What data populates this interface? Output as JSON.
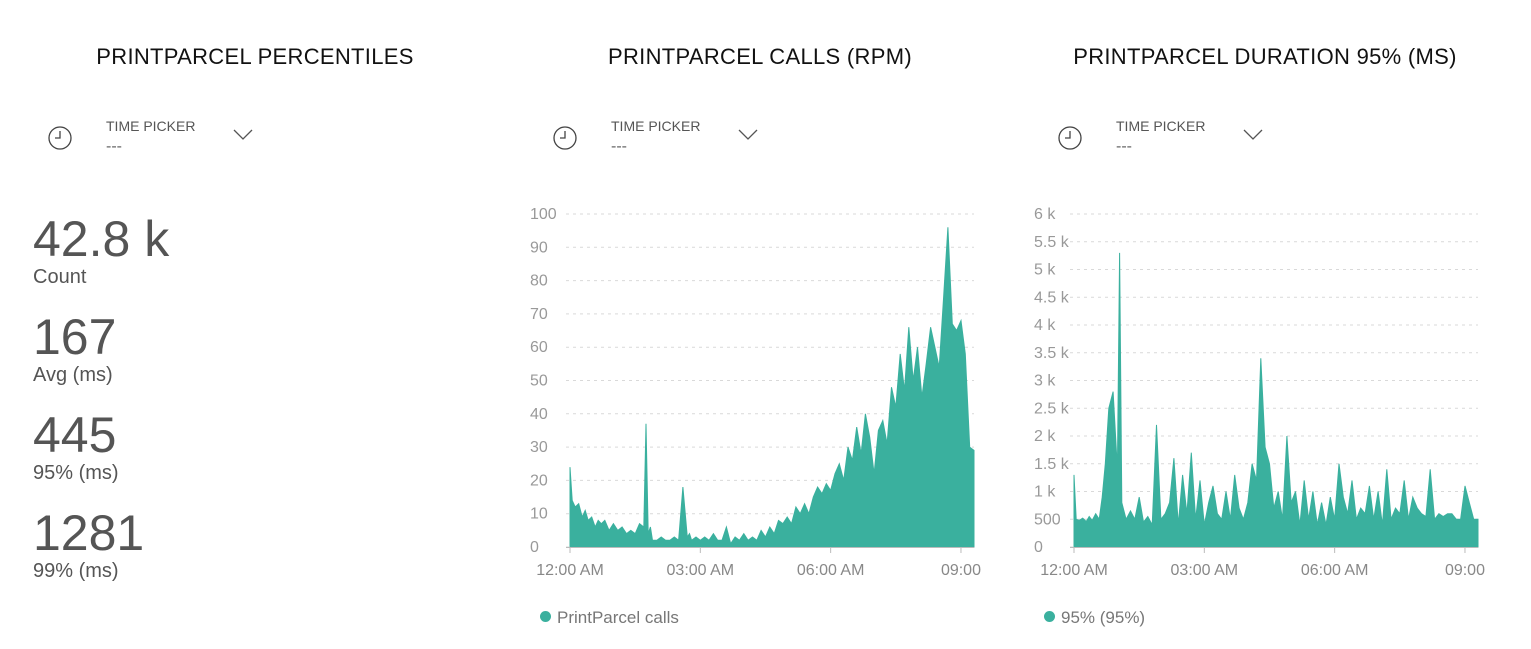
{
  "panels": {
    "percentiles": {
      "title": "PRINTPARCEL PERCENTILES",
      "picker": {
        "label": "TIME PICKER",
        "value": "---"
      },
      "stats": [
        {
          "value": "42.8 k",
          "label": "Count"
        },
        {
          "value": "167",
          "label": "Avg (ms)"
        },
        {
          "value": "445",
          "label": "95% (ms)"
        },
        {
          "value": "1281",
          "label": "99% (ms)"
        }
      ]
    },
    "calls": {
      "title": "PRINTPARCEL CALLS (RPM)",
      "picker": {
        "label": "TIME PICKER",
        "value": "---"
      },
      "legend": "PrintParcel calls"
    },
    "duration": {
      "title": "PRINTPARCEL DURATION 95% (MS)",
      "picker": {
        "label": "TIME PICKER",
        "value": "---"
      },
      "legend": "95% (95%)"
    }
  },
  "colors": {
    "series": "#3ab09e",
    "grid": "#d9d9d9",
    "axis": "#999999"
  },
  "icons": {
    "picker": "clock-icon",
    "dropdown": "chevron-down-icon"
  },
  "chart_data": [
    {
      "type": "area",
      "title": "PRINTPARCEL CALLS (RPM)",
      "xlabel": "",
      "ylabel": "",
      "x_range_hours": [
        0,
        9.3
      ],
      "x_tick_labels": [
        "12:00 AM",
        "03:00 AM",
        "06:00 AM",
        "09:00"
      ],
      "x_tick_hours": [
        0,
        3,
        6,
        9
      ],
      "ylim": [
        0,
        100
      ],
      "y_ticks": [
        0,
        10,
        20,
        30,
        40,
        50,
        60,
        70,
        80,
        90,
        100
      ],
      "y_tick_labels": [
        "0",
        "10",
        "20",
        "30",
        "40",
        "50",
        "60",
        "70",
        "80",
        "90",
        "100"
      ],
      "grid": true,
      "legend_position": "bottom-left",
      "series": [
        {
          "name": "PrintParcel calls",
          "x": [
            0,
            0.05,
            0.12,
            0.2,
            0.28,
            0.35,
            0.42,
            0.5,
            0.58,
            0.65,
            0.72,
            0.8,
            0.9,
            1.0,
            1.1,
            1.2,
            1.3,
            1.4,
            1.5,
            1.6,
            1.7,
            1.75,
            1.8,
            1.85,
            1.9,
            2.0,
            2.1,
            2.2,
            2.3,
            2.4,
            2.5,
            2.6,
            2.7,
            2.75,
            2.8,
            2.9,
            3.0,
            3.1,
            3.2,
            3.3,
            3.4,
            3.5,
            3.6,
            3.7,
            3.8,
            3.9,
            4.0,
            4.1,
            4.2,
            4.3,
            4.4,
            4.5,
            4.6,
            4.7,
            4.8,
            4.9,
            5.0,
            5.1,
            5.2,
            5.3,
            5.4,
            5.5,
            5.6,
            5.7,
            5.8,
            5.9,
            6.0,
            6.1,
            6.2,
            6.3,
            6.4,
            6.5,
            6.6,
            6.7,
            6.8,
            6.9,
            7.0,
            7.1,
            7.2,
            7.3,
            7.4,
            7.5,
            7.6,
            7.7,
            7.8,
            7.9,
            8.0,
            8.1,
            8.2,
            8.3,
            8.4,
            8.5,
            8.6,
            8.7,
            8.8,
            8.9,
            9.0,
            9.1,
            9.2,
            9.3
          ],
          "y": [
            24,
            14,
            12,
            13,
            9,
            11,
            8,
            9,
            6,
            8,
            7,
            8,
            5,
            7,
            5,
            6,
            4,
            5,
            4,
            7,
            6,
            37,
            4,
            6,
            2,
            2,
            3,
            2,
            2,
            3,
            2,
            18,
            3,
            4,
            2,
            3,
            2,
            3,
            2,
            4,
            2,
            2,
            6,
            1,
            3,
            2,
            4,
            2,
            3,
            2,
            5,
            3,
            6,
            4,
            8,
            7,
            9,
            7,
            12,
            10,
            13,
            10,
            15,
            18,
            16,
            19,
            17,
            22,
            25,
            20,
            30,
            26,
            36,
            28,
            40,
            33,
            22,
            35,
            38,
            31,
            48,
            42,
            58,
            47,
            66,
            50,
            60,
            45,
            55,
            66,
            60,
            54,
            75,
            96,
            67,
            65,
            68,
            58,
            30,
            29
          ]
        }
      ]
    },
    {
      "type": "area",
      "title": "PRINTPARCEL DURATION 95% (MS)",
      "xlabel": "",
      "ylabel": "",
      "x_range_hours": [
        0,
        9.3
      ],
      "x_tick_labels": [
        "12:00 AM",
        "03:00 AM",
        "06:00 AM",
        "09:00"
      ],
      "x_tick_hours": [
        0,
        3,
        6,
        9
      ],
      "ylim": [
        0,
        6000
      ],
      "y_ticks": [
        0,
        500,
        1000,
        1500,
        2000,
        2500,
        3000,
        3500,
        4000,
        4500,
        5000,
        5500,
        6000
      ],
      "y_tick_labels": [
        "0",
        "500",
        "1 k",
        "1.5 k",
        "2 k",
        "2.5 k",
        "3 k",
        "3.5 k",
        "4 k",
        "4.5 k",
        "5 k",
        "5.5 k",
        "6 k"
      ],
      "grid": true,
      "legend_position": "bottom-left",
      "series": [
        {
          "name": "95% (95%)",
          "x": [
            0,
            0.05,
            0.12,
            0.2,
            0.28,
            0.35,
            0.42,
            0.5,
            0.58,
            0.65,
            0.72,
            0.8,
            0.9,
            1.0,
            1.05,
            1.1,
            1.2,
            1.3,
            1.4,
            1.5,
            1.6,
            1.7,
            1.8,
            1.9,
            2.0,
            2.1,
            2.2,
            2.3,
            2.4,
            2.5,
            2.6,
            2.7,
            2.8,
            2.9,
            3.0,
            3.1,
            3.2,
            3.3,
            3.4,
            3.5,
            3.6,
            3.7,
            3.8,
            3.9,
            4.0,
            4.1,
            4.2,
            4.3,
            4.4,
            4.5,
            4.6,
            4.7,
            4.8,
            4.9,
            5.0,
            5.1,
            5.2,
            5.3,
            5.4,
            5.5,
            5.6,
            5.7,
            5.8,
            5.9,
            6.0,
            6.1,
            6.2,
            6.3,
            6.4,
            6.5,
            6.6,
            6.7,
            6.8,
            6.9,
            7.0,
            7.1,
            7.2,
            7.3,
            7.4,
            7.5,
            7.6,
            7.7,
            7.8,
            7.9,
            8.0,
            8.1,
            8.2,
            8.3,
            8.4,
            8.5,
            8.6,
            8.7,
            8.8,
            8.9,
            9.0,
            9.1,
            9.2,
            9.3
          ],
          "y": [
            1300,
            500,
            480,
            520,
            460,
            550,
            480,
            600,
            500,
            900,
            1500,
            2500,
            2800,
            1400,
            5300,
            800,
            500,
            650,
            500,
            900,
            450,
            550,
            400,
            2200,
            500,
            600,
            800,
            1600,
            400,
            1300,
            600,
            1700,
            500,
            1200,
            400,
            800,
            1100,
            600,
            500,
            1000,
            500,
            1300,
            700,
            500,
            800,
            1500,
            1200,
            3400,
            1800,
            1500,
            700,
            1000,
            500,
            2000,
            800,
            1000,
            400,
            1200,
            500,
            1000,
            400,
            800,
            400,
            900,
            500,
            1500,
            900,
            600,
            1200,
            500,
            700,
            600,
            1100,
            500,
            1000,
            400,
            1400,
            500,
            700,
            600,
            1200,
            500,
            900,
            700,
            600,
            550,
            1400,
            500,
            600,
            550,
            600,
            600,
            500,
            500,
            1100,
            800,
            500,
            500
          ]
        }
      ]
    }
  ]
}
